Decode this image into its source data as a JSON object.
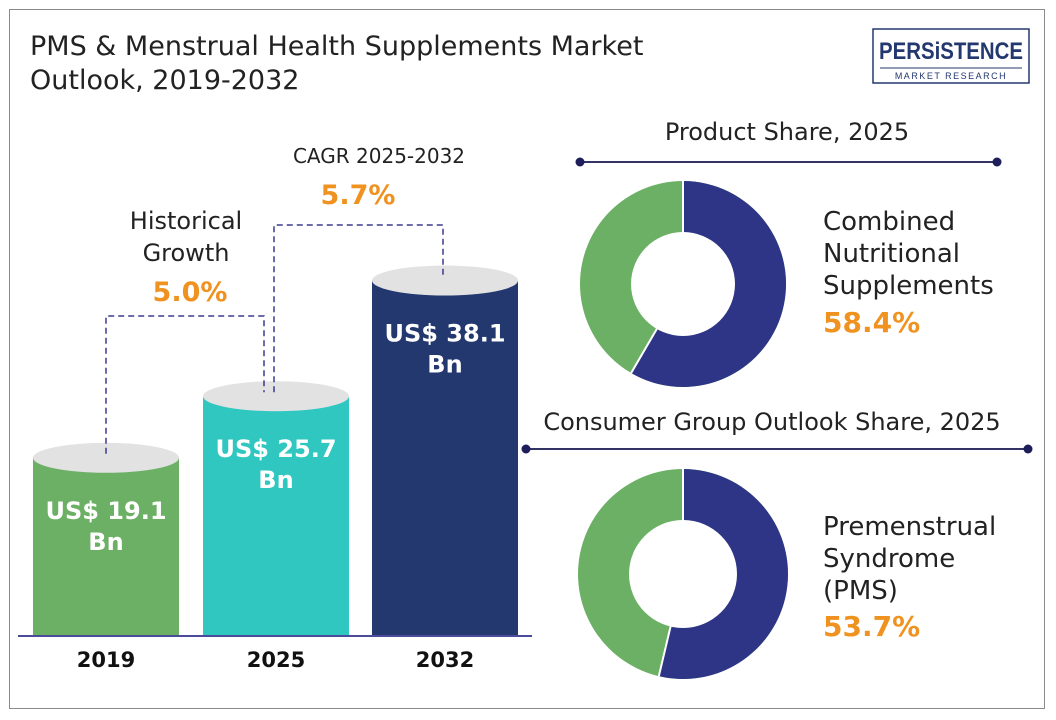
{
  "title_line1": "PMS & Menstrual Health Supplements Market",
  "title_line2": "Outlook, 2019-2032",
  "logo": {
    "brand": "PERSiSTENCE",
    "tagline": "MARKET RESEARCH"
  },
  "colors": {
    "accent": "#f0921f",
    "green": "#6bb065",
    "teal": "#2fc7c0",
    "navy": "#23386f",
    "donut_navy": "#2e3586",
    "axis": "#4b4b9a"
  },
  "chart_data": [
    {
      "type": "bar",
      "categories": [
        "2019",
        "2025",
        "2032"
      ],
      "values": [
        19.1,
        25.7,
        38.1
      ],
      "value_labels": [
        [
          "US$ 19.1",
          "Bn"
        ],
        [
          "US$ 25.7",
          "Bn"
        ],
        [
          "US$ 38.1",
          "Bn"
        ]
      ],
      "annotations": [
        {
          "label_lines": [
            "Historical",
            "Growth"
          ],
          "value": "5.0%"
        },
        {
          "label_lines": [
            "CAGR 2025-2032"
          ],
          "value": "5.7%"
        }
      ]
    },
    {
      "type": "pie",
      "title": "Product Share, 2025",
      "highlight": {
        "label_lines": [
          "Combined",
          "Nutritional",
          "Supplements"
        ],
        "value": "58.4%",
        "share": 58.4
      }
    },
    {
      "type": "pie",
      "title": "Consumer Group Outlook Share, 2025",
      "highlight": {
        "label_lines": [
          "Premenstrual",
          "Syndrome",
          "(PMS)"
        ],
        "value": "53.7%",
        "share": 53.7
      }
    }
  ]
}
